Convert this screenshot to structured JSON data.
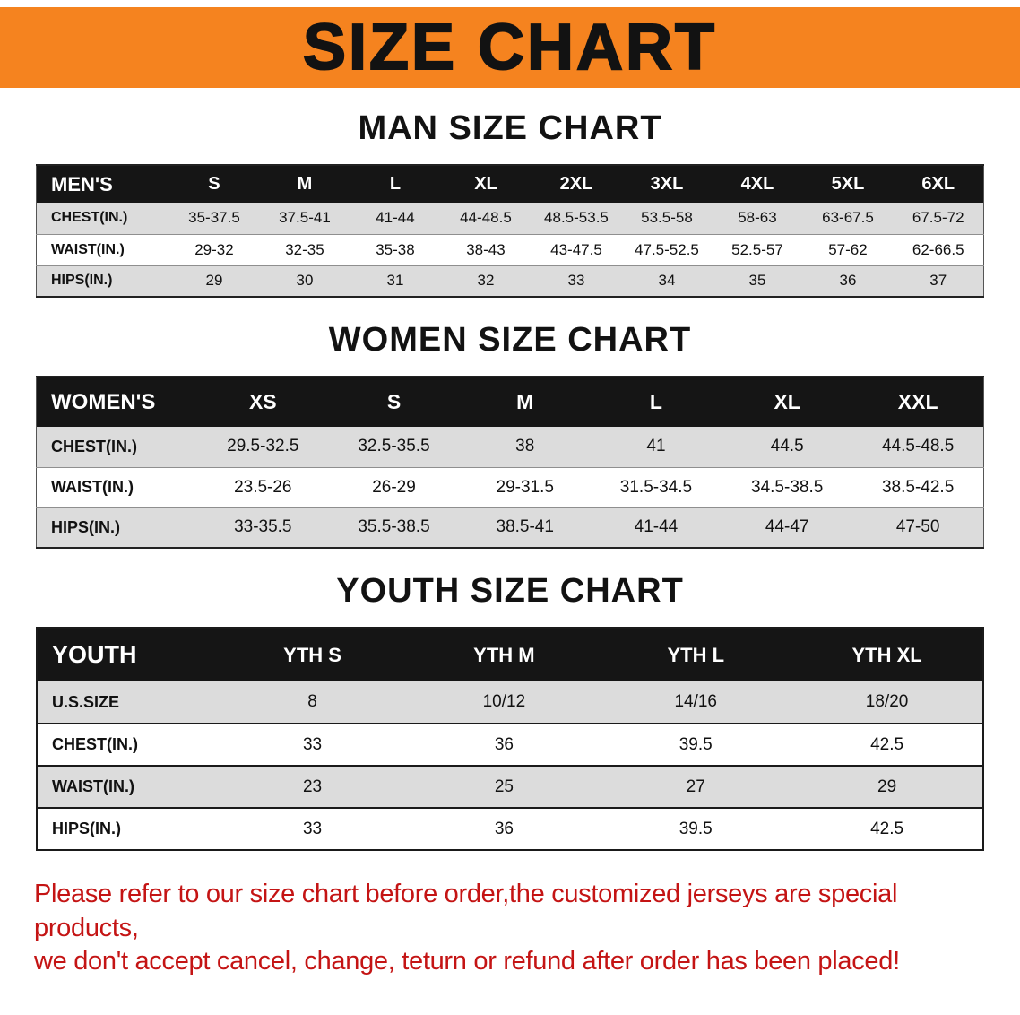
{
  "banner": {
    "title": "SIZE CHART"
  },
  "colors": {
    "banner_bg": "#f5831f",
    "header_bg": "#151515",
    "row_alt": "#dcdcdc",
    "disclaimer_color": "#c41414"
  },
  "sections": [
    {
      "heading": "MAN SIZE CHART",
      "table": {
        "header": [
          "MEN'S",
          "S",
          "M",
          "L",
          "XL",
          "2XL",
          "3XL",
          "4XL",
          "5XL",
          "6XL"
        ],
        "rows": [
          [
            "CHEST(IN.)",
            "35-37.5",
            "37.5-41",
            "41-44",
            "44-48.5",
            "48.5-53.5",
            "53.5-58",
            "58-63",
            "63-67.5",
            "67.5-72"
          ],
          [
            "WAIST(IN.)",
            "29-32",
            "32-35",
            "35-38",
            "38-43",
            "43-47.5",
            "47.5-52.5",
            "52.5-57",
            "57-62",
            "62-66.5"
          ],
          [
            "HIPS(IN.)",
            "29",
            "30",
            "31",
            "32",
            "33",
            "34",
            "35",
            "36",
            "37"
          ]
        ]
      }
    },
    {
      "heading": "WOMEN SIZE CHART",
      "table": {
        "header": [
          "WOMEN'S",
          "XS",
          "S",
          "M",
          "L",
          "XL",
          "XXL"
        ],
        "rows": [
          [
            "CHEST(IN.)",
            "29.5-32.5",
            "32.5-35.5",
            "38",
            "41",
            "44.5",
            "44.5-48.5"
          ],
          [
            "WAIST(IN.)",
            "23.5-26",
            "26-29",
            "29-31.5",
            "31.5-34.5",
            "34.5-38.5",
            "38.5-42.5"
          ],
          [
            "HIPS(IN.)",
            "33-35.5",
            "35.5-38.5",
            "38.5-41",
            "41-44",
            "44-47",
            "47-50"
          ]
        ]
      }
    },
    {
      "heading": "YOUTH SIZE CHART",
      "table": {
        "header": [
          "YOUTH",
          "YTH S",
          "YTH M",
          "YTH L",
          "YTH XL"
        ],
        "rows": [
          [
            "U.S.SIZE",
            "8",
            "10/12",
            "14/16",
            "18/20"
          ],
          [
            "CHEST(IN.)",
            "33",
            "36",
            "39.5",
            "42.5"
          ],
          [
            "WAIST(IN.)",
            "23",
            "25",
            "27",
            "29"
          ],
          [
            "HIPS(IN.)",
            "33",
            "36",
            "39.5",
            "42.5"
          ]
        ]
      }
    }
  ],
  "disclaimer": {
    "lines": [
      "Please refer to our size chart before order,the customized jerseys are special products,",
      "we don't accept cancel, change, teturn or refund after order has been placed!"
    ]
  }
}
